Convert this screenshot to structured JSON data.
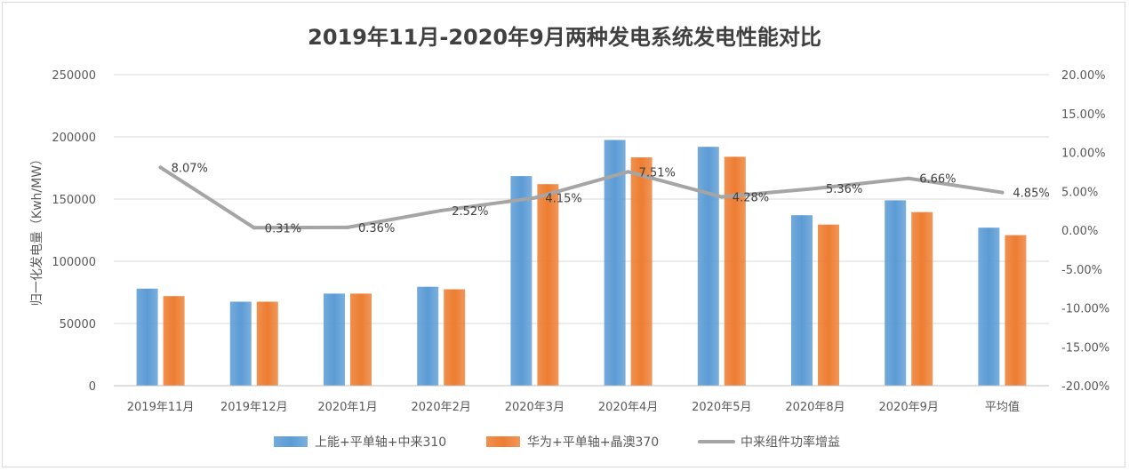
{
  "chart_data": {
    "type": "bar",
    "title": "2019年11月-2020年9月两种发电系统发电性能对比",
    "ylabel": "归一化发电量（Kwh/MW）",
    "y2label": "",
    "ylim": [
      0,
      250000
    ],
    "y2lim": [
      -0.2,
      0.2
    ],
    "y_ticks": [
      "0",
      "50000",
      "100000",
      "150000",
      "200000",
      "250000"
    ],
    "y2_ticks": [
      "-20.00%",
      "-15.00%",
      "-10.00%",
      "-5.00%",
      "0.00%",
      "5.00%",
      "10.00%",
      "15.00%",
      "20.00%"
    ],
    "categories": [
      "2019年11月",
      "2019年12月",
      "2020年1月",
      "2020年2月",
      "2020年3月",
      "2020年4月",
      "2020年5月",
      "2020年8月",
      "2020年9月",
      "平均值"
    ],
    "series": [
      {
        "name": "上能+平单轴+中来310",
        "type": "bar",
        "axis": "left",
        "color": "#5b9bd5",
        "values": [
          78000,
          67500,
          74000,
          79500,
          168500,
          197500,
          192000,
          137000,
          149000,
          127000
        ]
      },
      {
        "name": "华为+平单轴+晶澳370",
        "type": "bar",
        "axis": "left",
        "color": "#ed7d31",
        "values": [
          72000,
          67500,
          74000,
          77500,
          162000,
          183500,
          184000,
          129500,
          139500,
          121000
        ]
      },
      {
        "name": "中来组件功率增益",
        "type": "line",
        "axis": "right",
        "color": "#a5a5a5",
        "values": [
          0.0807,
          0.0031,
          0.0036,
          0.0252,
          0.0415,
          0.0751,
          0.0428,
          0.0536,
          0.0666,
          0.0485
        ],
        "labels": [
          "8.07%",
          "0.31%",
          "0.36%",
          "2.52%",
          "4.15%",
          "7.51%",
          "4.28%",
          "5.36%",
          "6.66%",
          "4.85%"
        ]
      }
    ],
    "grid": true,
    "legend": "bottom"
  }
}
